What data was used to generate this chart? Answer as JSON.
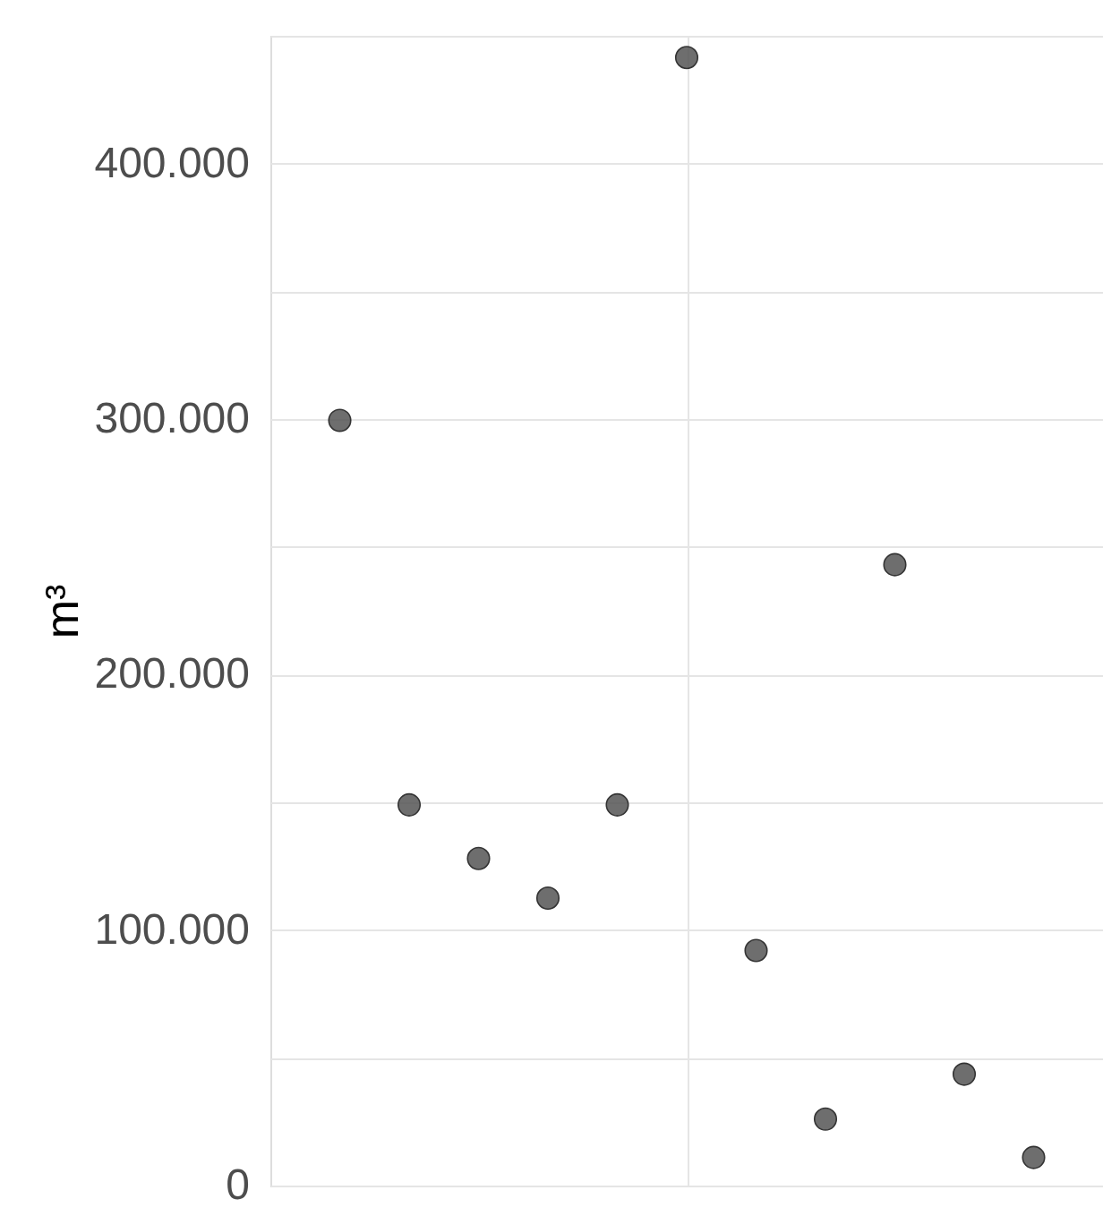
{
  "chart_data": {
    "type": "scatter",
    "ylabel": "m³",
    "categories": [
      null,
      null,
      null,
      null,
      null,
      null,
      null,
      null,
      null,
      null,
      null
    ],
    "values": [
      299500,
      149000,
      128000,
      112500,
      149000,
      441500,
      92000,
      26000,
      243000,
      43600,
      11000
    ],
    "color": "#555555",
    "marker": "circle",
    "ylim": [
      0,
      450000
    ],
    "yticks": [
      {
        "value": 0,
        "label": "0"
      },
      {
        "value": 50000,
        "label": null
      },
      {
        "value": 100000,
        "label": "100.000"
      },
      {
        "value": 150000,
        "label": null
      },
      {
        "value": 200000,
        "label": "200.000"
      },
      {
        "value": 250000,
        "label": null
      },
      {
        "value": 300000,
        "label": "300.000"
      },
      {
        "value": 350000,
        "label": null
      },
      {
        "value": 400000,
        "label": "400.000"
      },
      {
        "value": 450000,
        "label": null
      }
    ],
    "grid": true,
    "legend": false,
    "tick_labels": "y"
  }
}
